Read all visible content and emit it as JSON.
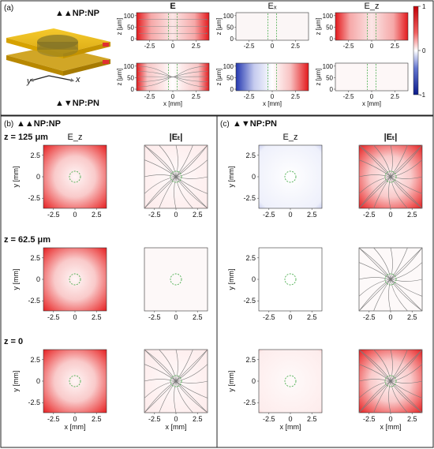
{
  "panel_labels": {
    "a": "(a)",
    "b": "(b)",
    "c": "(c)"
  },
  "config_a_top": "▲▲NP:NP",
  "config_a_bottom": "▲▼NP:PN",
  "config_b": "▲▲NP:NP",
  "config_c": "▲▼NP:PN",
  "axes_3d": {
    "y": "y",
    "x": "x"
  },
  "panel_a": {
    "col_titles": [
      "E",
      "Eₓ",
      "E_z"
    ],
    "x_ticks": [
      "-2.5",
      "0",
      "2.5"
    ],
    "z_ticks": [
      "0",
      "50",
      "100"
    ],
    "xlabel": "x [mm]",
    "ylabel": "z [μm]",
    "colorbar_ticks": [
      "1",
      "0",
      "-1"
    ]
  },
  "panel_bc": {
    "col_titles_b": [
      "E_z",
      "|Eₜ|"
    ],
    "col_titles_c": [
      "E_z",
      "|Eₜ|"
    ],
    "row_labels": [
      "z = 125 μm",
      "z = 62.5 μm",
      "z = 0"
    ],
    "ticks": [
      "-2.5",
      "0",
      "2.5"
    ],
    "yticks": [
      "2.5",
      "0",
      "-2.5"
    ],
    "xlabel": "x [mm]",
    "ylabel": "y [mm]"
  },
  "colors": {
    "positive": "#e8252a",
    "negative": "#3a52b8",
    "neutral": "#fbf4f4",
    "circle": "#4caf50"
  }
}
